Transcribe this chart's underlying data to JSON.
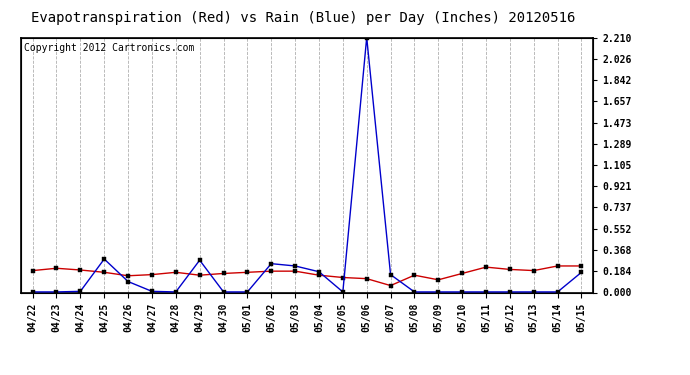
{
  "title": "Evapotranspiration (Red) vs Rain (Blue) per Day (Inches) 20120516",
  "copyright": "Copyright 2012 Cartronics.com",
  "labels": [
    "04/22",
    "04/23",
    "04/24",
    "04/25",
    "04/26",
    "04/27",
    "04/28",
    "04/29",
    "04/30",
    "05/01",
    "05/02",
    "05/03",
    "05/04",
    "05/05",
    "05/06",
    "05/07",
    "05/08",
    "05/09",
    "05/10",
    "05/11",
    "05/12",
    "05/13",
    "05/14",
    "05/15"
  ],
  "red_data": [
    0.19,
    0.21,
    0.195,
    0.175,
    0.145,
    0.155,
    0.175,
    0.15,
    0.165,
    0.175,
    0.185,
    0.185,
    0.15,
    0.13,
    0.12,
    0.06,
    0.15,
    0.11,
    0.165,
    0.22,
    0.2,
    0.19,
    0.23,
    0.23
  ],
  "blue_data": [
    0.005,
    0.005,
    0.01,
    0.29,
    0.095,
    0.01,
    0.005,
    0.28,
    0.005,
    0.005,
    0.25,
    0.23,
    0.18,
    0.005,
    2.21,
    0.155,
    0.005,
    0.005,
    0.005,
    0.005,
    0.005,
    0.005,
    0.005,
    0.175
  ],
  "yticks": [
    0.0,
    0.184,
    0.368,
    0.552,
    0.737,
    0.921,
    1.105,
    1.289,
    1.473,
    1.657,
    1.842,
    2.026,
    2.21
  ],
  "ylim": [
    0.0,
    2.21
  ],
  "bg_color": "#ffffff",
  "plot_bg_color": "#ffffff",
  "grid_color": "#b0b0b0",
  "red_color": "#cc0000",
  "blue_color": "#0000cc",
  "title_fontsize": 10,
  "copyright_fontsize": 7,
  "tick_fontsize": 7
}
